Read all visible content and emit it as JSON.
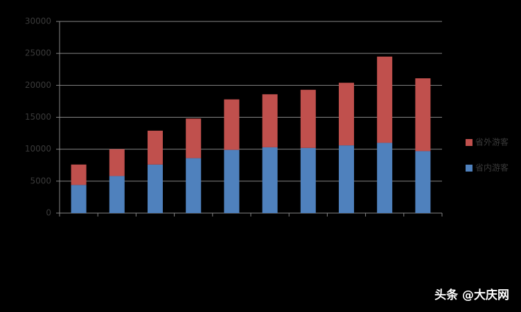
{
  "chart_data": {
    "type": "stacked_bar",
    "categories": [
      null,
      null,
      null,
      null,
      null,
      null,
      null,
      null,
      null,
      null
    ],
    "series": [
      {
        "name": "省内游客",
        "color": "#4f81bd",
        "values": [
          4400,
          5800,
          7600,
          8600,
          9900,
          10300,
          10200,
          10600,
          11000,
          9700
        ]
      },
      {
        "name": "省外游客",
        "color": "#c0504d",
        "values": [
          3200,
          4200,
          5300,
          6200,
          7900,
          8300,
          9100,
          9800,
          13500,
          11400
        ]
      }
    ],
    "ylim": [
      0,
      30000
    ],
    "yticks": [
      0,
      5000,
      10000,
      15000,
      20000,
      25000,
      30000
    ],
    "grid": true,
    "legend": "right"
  },
  "watermark": "头条 @大庆网"
}
